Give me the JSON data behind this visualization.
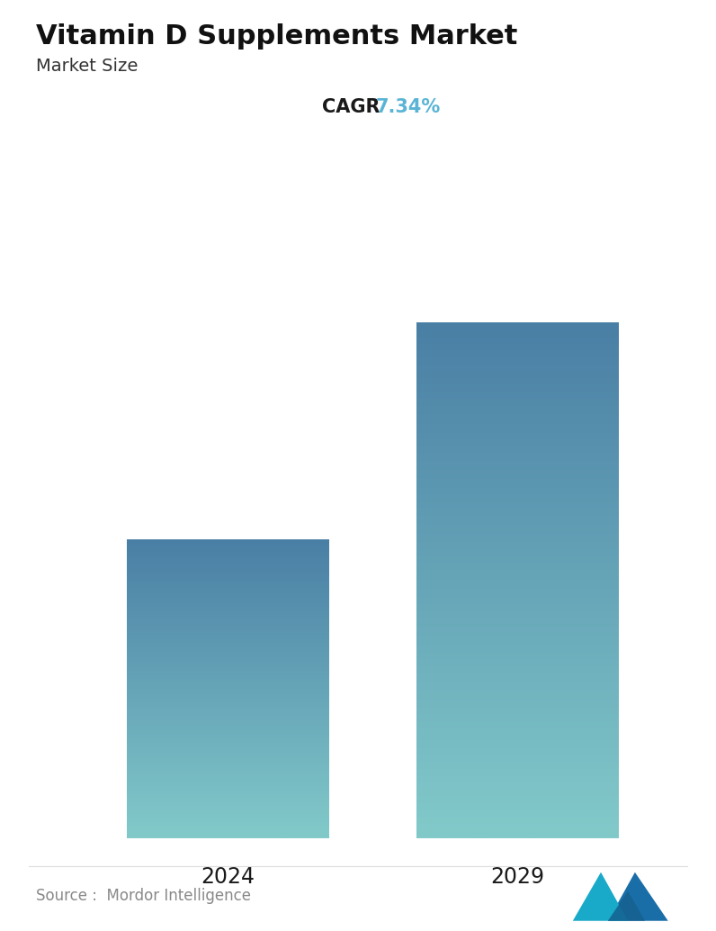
{
  "title": "Vitamin D Supplements Market",
  "subtitle": "Market Size",
  "cagr_label": "CAGR",
  "cagr_value": "7.34%",
  "cagr_color": "#5ab4d6",
  "categories": [
    "2024",
    "2029"
  ],
  "values": [
    0.58,
    1.0
  ],
  "bar_top_color": [
    "#4a7fa5",
    "#4a7fa5"
  ],
  "bar_bottom_color": [
    "#82caca",
    "#82caca"
  ],
  "source_text": "Source :  Mordor Intelligence",
  "background_color": "#ffffff",
  "title_fontsize": 22,
  "subtitle_fontsize": 14,
  "cagr_fontsize": 15,
  "tick_fontsize": 17,
  "source_fontsize": 12,
  "bar_positions": [
    0.27,
    0.73
  ],
  "bar_width": 0.32,
  "ylim_max": 1.12
}
